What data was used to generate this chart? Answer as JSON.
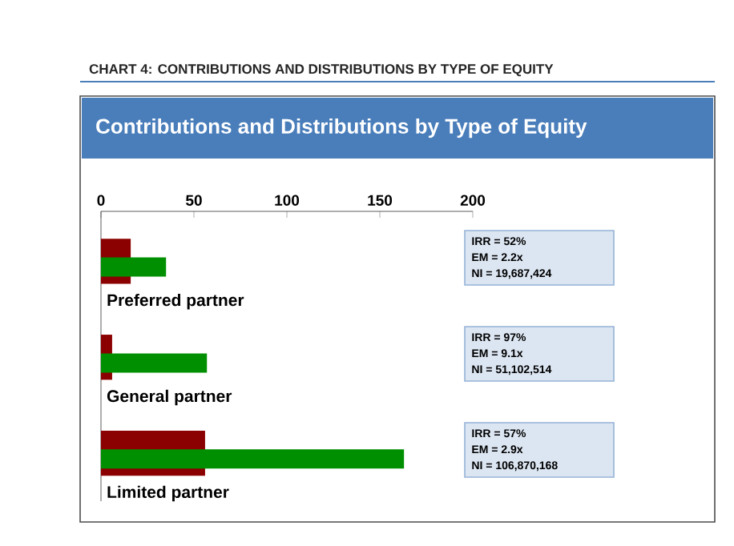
{
  "chart_data": {
    "type": "bar",
    "orientation": "horizontal",
    "title": "CHART 4: CONTRIBUTIONS AND DISTRIBUTIONS BY TYPE OF EQUITY",
    "subtitle": "Contributions and Distributions by Type of Equity",
    "categories": [
      "Preferred partner",
      "General partner",
      "Limited partner"
    ],
    "series": [
      {
        "color": "#8b0000",
        "values": [
          16,
          6,
          56
        ]
      },
      {
        "color": "#008f00",
        "values": [
          35,
          57,
          163
        ]
      }
    ],
    "xlim": [
      0,
      200
    ],
    "xticks": [
      0,
      50,
      100,
      150,
      200
    ],
    "annotations": [
      "IRR = 52%",
      "EM = 2.2x",
      "NI = 19,687,424",
      "IRR = 97%",
      "EM = 9.1x",
      "NI = 51,102,514",
      "IRR = 57%",
      "EM = 2.9x",
      "NI = 106,870,168"
    ]
  }
}
